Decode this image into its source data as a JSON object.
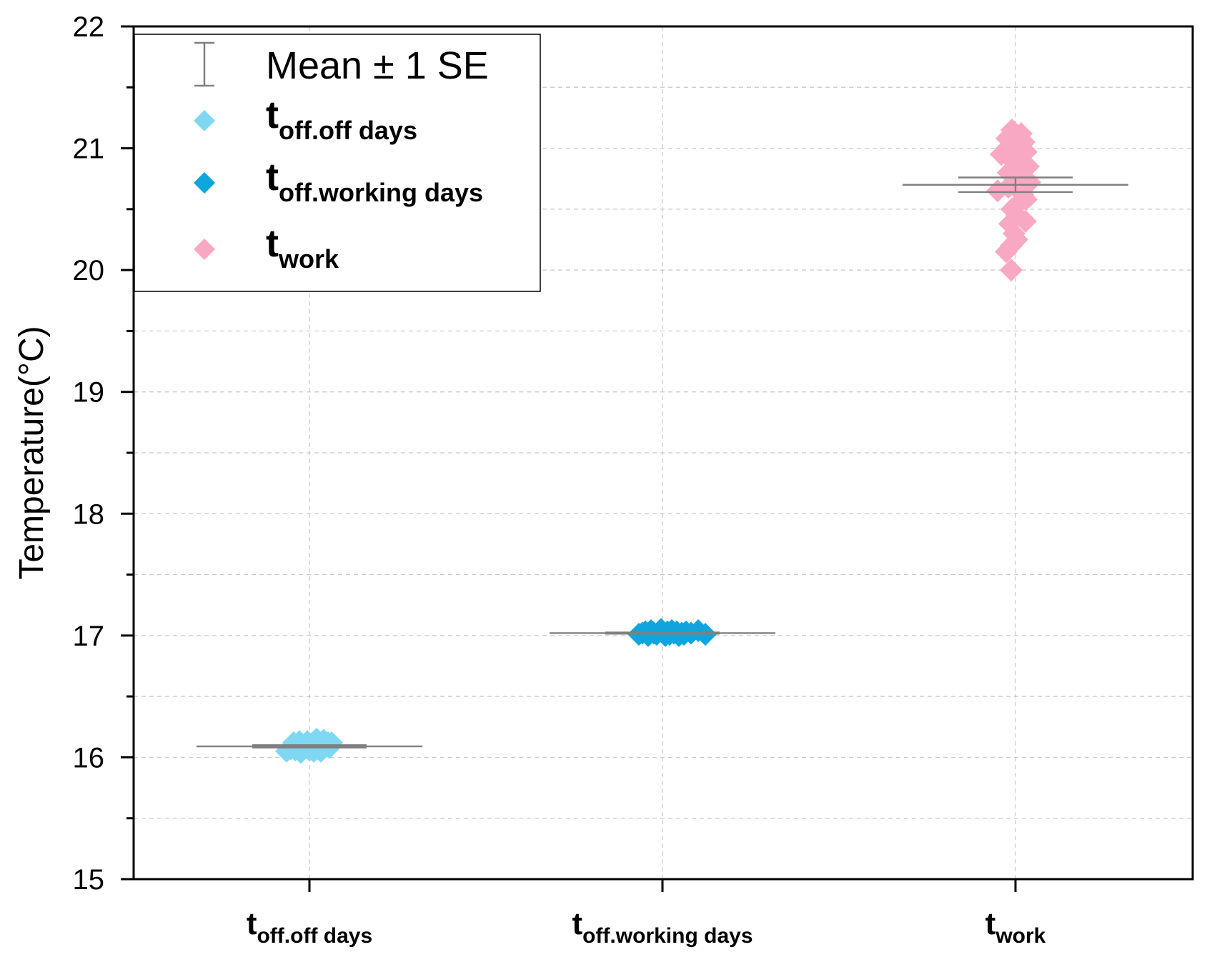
{
  "chart_data": {
    "type": "scatter",
    "title": "",
    "xlabel": "",
    "ylabel": "Temperature(°C)",
    "ylim": [
      15,
      22
    ],
    "yticks": [
      15,
      16,
      17,
      18,
      19,
      20,
      21,
      22
    ],
    "grid": true,
    "legend_position": "top-left",
    "legend": [
      {
        "key": "se",
        "main": "Mean ± 1 SE",
        "sub": ""
      },
      {
        "key": "off_off",
        "main": "t",
        "sub": "off.off days"
      },
      {
        "key": "off_work",
        "main": "t",
        "sub": "off.working days"
      },
      {
        "key": "work",
        "main": "t",
        "sub": "work"
      }
    ],
    "categories": [
      {
        "main": "t",
        "sub": "off.off days"
      },
      {
        "main": "t",
        "sub": "off.working days"
      },
      {
        "main": "t",
        "sub": "work"
      }
    ],
    "series": [
      {
        "name": "toff.off days",
        "color": "#7fd8f2",
        "mean": 16.09,
        "se": 0.01,
        "values": [
          16.05,
          16.07,
          16.12,
          16.08,
          16.04,
          16.1,
          16.13,
          16.06,
          16.09,
          16.11,
          16.07,
          16.05,
          16.14,
          16.1,
          16.08,
          16.12,
          16.06,
          16.09,
          16.15,
          16.07,
          16.11,
          16.13,
          16.08,
          16.05,
          16.1,
          16.12
        ],
        "offsets": [
          -0.32,
          -0.26,
          -0.22,
          -0.16,
          -0.12,
          -0.08,
          -0.03,
          0.0,
          0.04,
          0.08,
          0.12,
          0.16,
          0.2,
          0.24,
          0.28,
          0.31,
          -0.2,
          -0.05,
          0.1,
          0.14,
          0.02,
          -0.14,
          0.18,
          0.06,
          -0.1,
          0.26
        ]
      },
      {
        "name": "toff.working days",
        "color": "#0ea5dc",
        "mean": 17.02,
        "se": 0.005,
        "values": [
          17.01,
          17.02,
          17.03,
          17.0,
          17.04,
          17.02,
          17.01,
          17.03,
          17.05,
          17.02,
          17.0,
          17.03,
          17.01,
          17.04,
          17.02,
          17.03,
          17.0,
          17.02,
          17.01,
          17.03,
          17.02,
          17.04,
          17.01
        ],
        "offsets": [
          -0.33,
          -0.28,
          -0.24,
          -0.2,
          -0.16,
          -0.12,
          -0.08,
          -0.05,
          -0.02,
          0.01,
          0.04,
          0.07,
          0.1,
          0.13,
          0.16,
          0.2,
          0.23,
          0.27,
          0.3,
          0.33,
          0.4,
          0.5,
          0.6
        ]
      },
      {
        "name": "twork",
        "color": "#f9a8c3",
        "mean": 20.7,
        "se": 0.06,
        "values": [
          21.15,
          21.12,
          21.05,
          21.0,
          20.97,
          20.95,
          20.92,
          20.9,
          20.85,
          20.8,
          20.75,
          20.72,
          20.68,
          20.65,
          20.58,
          20.55,
          20.5,
          20.45,
          20.4,
          20.38,
          20.3,
          20.25,
          20.2,
          20.15,
          20.0,
          21.08,
          21.02,
          20.88,
          20.78,
          20.62
        ],
        "offsets": [
          -0.05,
          0.08,
          0.12,
          -0.12,
          0.15,
          -0.2,
          0.05,
          -0.05,
          0.18,
          -0.1,
          0.12,
          0.2,
          -0.1,
          -0.25,
          0.15,
          0.05,
          -0.05,
          0.02,
          0.14,
          -0.08,
          -0.02,
          0.02,
          -0.06,
          -0.13,
          -0.06,
          -0.12,
          0.04,
          0.08,
          -0.02,
          0.1
        ]
      }
    ]
  }
}
